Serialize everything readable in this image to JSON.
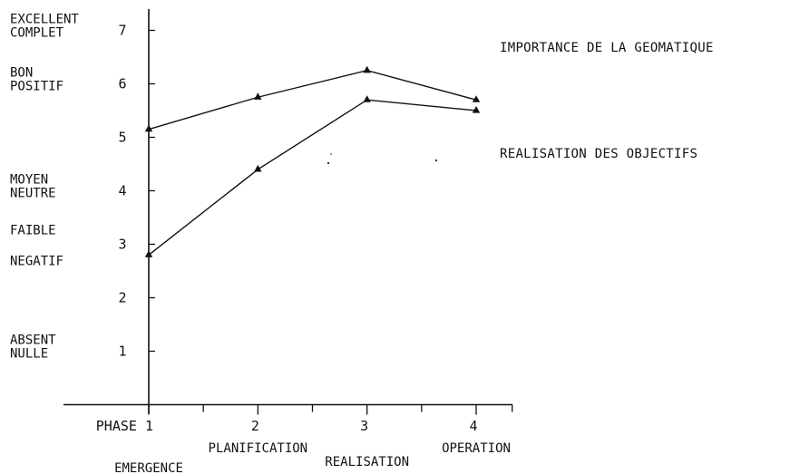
{
  "chart_data": {
    "type": "line",
    "title": "",
    "xlabel": "",
    "ylabel": "",
    "x": [
      1,
      2,
      3,
      4
    ],
    "xticks": [
      {
        "value": 1,
        "label": "PHASE 1"
      },
      {
        "value": 2,
        "label": "2"
      },
      {
        "value": 3,
        "label": "3"
      },
      {
        "value": 4,
        "label": "4"
      }
    ],
    "phase_names": [
      {
        "value": 1,
        "label": "EMERGENCE"
      },
      {
        "value": 2,
        "label": "PLANIFICATION"
      },
      {
        "value": 3,
        "label": "REALISATION"
      },
      {
        "value": 4,
        "label": "OPERATION"
      }
    ],
    "xlim": [
      0,
      4.35
    ],
    "ylim": [
      0,
      7.4
    ],
    "yticks": [
      1,
      2,
      3,
      4,
      5,
      6,
      7
    ],
    "y_quality_labels": [
      {
        "value": 7,
        "lines": [
          "EXCELLENT",
          "COMPLET"
        ]
      },
      {
        "value": 6,
        "lines": [
          "BON",
          "POSITIF"
        ]
      },
      {
        "value": 4,
        "lines": [
          "MOYEN",
          "NEUTRE"
        ]
      },
      {
        "value": 3,
        "lines": [
          "FAIBLE",
          "NEGATIF"
        ]
      },
      {
        "value": 1,
        "lines": [
          "ABSENT",
          "NULLE"
        ]
      }
    ],
    "series": [
      {
        "name": "IMPORTANCE DE LA GEOMATIQUE",
        "values": [
          5.15,
          5.75,
          6.25,
          5.7
        ]
      },
      {
        "name": "REALISATION DES OBJECTIFS",
        "values": [
          2.8,
          4.4,
          5.7,
          5.5
        ]
      }
    ],
    "marker": "triangle",
    "grid": false,
    "legend": "right"
  }
}
